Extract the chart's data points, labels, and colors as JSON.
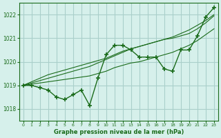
{
  "title": "Graphe pression niveau de la mer (hPa)",
  "bg_color": "#d6f0eb",
  "grid_color": "#aacfca",
  "line_color": "#1a6b1a",
  "xlim": [
    -0.5,
    23.5
  ],
  "ylim": [
    1017.5,
    1022.5
  ],
  "yticks": [
    1018,
    1019,
    1020,
    1021,
    1022
  ],
  "xticks": [
    0,
    1,
    2,
    3,
    4,
    5,
    6,
    7,
    8,
    9,
    10,
    11,
    12,
    13,
    14,
    15,
    16,
    17,
    18,
    19,
    20,
    21,
    22,
    23
  ],
  "series_main": [
    1019.0,
    1019.0,
    1018.9,
    1018.8,
    1018.5,
    1018.4,
    1018.6,
    1018.8,
    1018.15,
    1019.3,
    1020.3,
    1020.7,
    1020.7,
    1020.5,
    1020.2,
    1020.2,
    1020.2,
    1019.7,
    1019.6,
    1020.5,
    1020.5,
    1021.1,
    1021.9,
    1022.3
  ],
  "series_trend1": [
    1019.0,
    1019.05,
    1019.1,
    1019.15,
    1019.2,
    1019.25,
    1019.3,
    1019.35,
    1019.4,
    1019.5,
    1019.6,
    1019.75,
    1019.85,
    1019.95,
    1020.0,
    1020.1,
    1020.2,
    1020.3,
    1020.4,
    1020.55,
    1020.7,
    1020.9,
    1021.15,
    1021.4
  ],
  "series_trend2": [
    1019.0,
    1019.1,
    1019.2,
    1019.3,
    1019.4,
    1019.5,
    1019.6,
    1019.7,
    1019.8,
    1019.95,
    1020.1,
    1020.25,
    1020.4,
    1020.55,
    1020.65,
    1020.75,
    1020.85,
    1020.95,
    1021.0,
    1021.1,
    1021.2,
    1021.4,
    1021.65,
    1021.95
  ],
  "series_trend3": [
    1019.0,
    1019.15,
    1019.3,
    1019.45,
    1019.55,
    1019.65,
    1019.75,
    1019.85,
    1019.95,
    1020.05,
    1020.15,
    1020.3,
    1020.45,
    1020.55,
    1020.65,
    1020.75,
    1020.85,
    1020.95,
    1021.05,
    1021.2,
    1021.35,
    1021.55,
    1021.75,
    1022.0
  ]
}
